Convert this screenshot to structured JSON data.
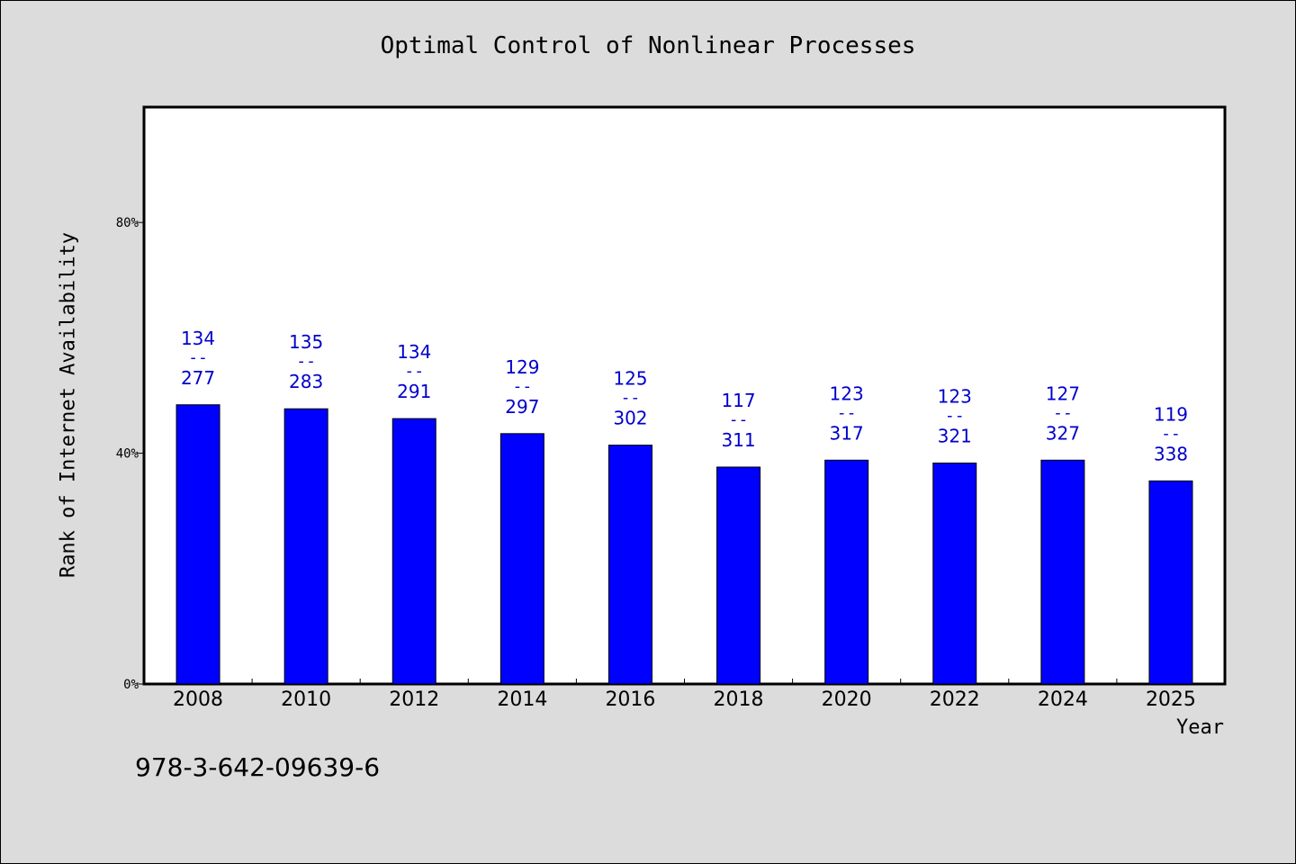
{
  "chart_data": {
    "type": "bar",
    "title": "Optimal Control of Nonlinear Processes",
    "xlabel": "Year",
    "ylabel": "Rank of Internet Availability",
    "ylim": [
      0,
      100
    ],
    "yticks": [
      {
        "value": 0,
        "label": "0%"
      },
      {
        "value": 40,
        "label": "40%"
      },
      {
        "value": 80,
        "label": "80%"
      }
    ],
    "grid": false,
    "categories": [
      "2008",
      "2010",
      "2012",
      "2014",
      "2016",
      "2018",
      "2020",
      "2022",
      "2024",
      "2025"
    ],
    "values": [
      48.4,
      47.7,
      46.0,
      43.4,
      41.4,
      37.6,
      38.8,
      38.3,
      38.8,
      35.2
    ],
    "labels_top": [
      "134",
      "135",
      "134",
      "129",
      "125",
      "117",
      "123",
      "123",
      "127",
      "119"
    ],
    "labels_sep": "--",
    "labels_bottom": [
      "277",
      "283",
      "291",
      "297",
      "302",
      "311",
      "317",
      "321",
      "327",
      "338"
    ],
    "bar_color": "#0000ff",
    "label_color": "#0000cc"
  },
  "footer": {
    "isbn": "978-3-642-09639-6"
  }
}
